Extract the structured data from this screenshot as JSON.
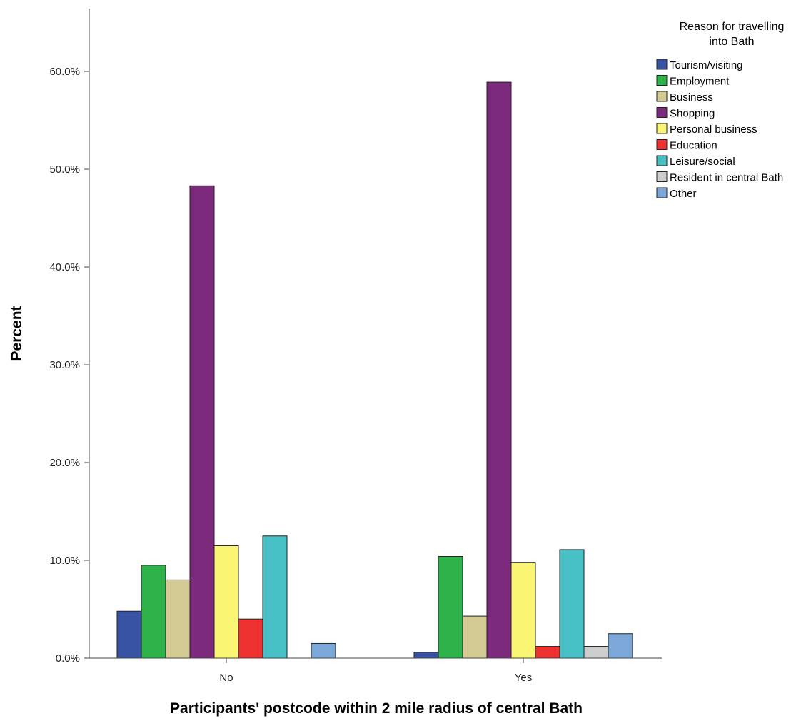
{
  "chart_data": {
    "type": "bar",
    "xlabel": "Participants' postcode within 2 mile radius of central Bath",
    "ylabel": "Percent",
    "ylim": [
      0,
      66
    ],
    "yticks": [
      0,
      10,
      20,
      30,
      40,
      50,
      60
    ],
    "ytick_labels": [
      "0.0%",
      "10.0%",
      "20.0%",
      "30.0%",
      "40.0%",
      "50.0%",
      "60.0%"
    ],
    "categories": [
      "No",
      "Yes"
    ],
    "grid": false,
    "legend_position": "top-right",
    "legend_title": [
      "Reason for travelling",
      "into Bath"
    ],
    "series": [
      {
        "name": "Tourism/visiting",
        "color": "#3953a4",
        "values": [
          4.8,
          0.6
        ]
      },
      {
        "name": "Employment",
        "color": "#2db34a",
        "values": [
          9.5,
          10.4
        ]
      },
      {
        "name": "Business",
        "color": "#d3cb93",
        "values": [
          8.0,
          4.3
        ]
      },
      {
        "name": "Shopping",
        "color": "#7b2a7b",
        "values": [
          48.3,
          58.9
        ]
      },
      {
        "name": "Personal business",
        "color": "#fbf574",
        "values": [
          11.5,
          9.8
        ]
      },
      {
        "name": "Education",
        "color": "#ee3131",
        "values": [
          4.0,
          1.2
        ]
      },
      {
        "name": "Leisure/social",
        "color": "#48c1c6",
        "values": [
          12.5,
          11.1
        ]
      },
      {
        "name": "Resident in central Bath",
        "color": "#cdcdcd",
        "values": [
          0.0,
          1.2
        ]
      },
      {
        "name": "Other",
        "color": "#7ca8d9",
        "values": [
          1.5,
          2.5
        ]
      }
    ]
  }
}
